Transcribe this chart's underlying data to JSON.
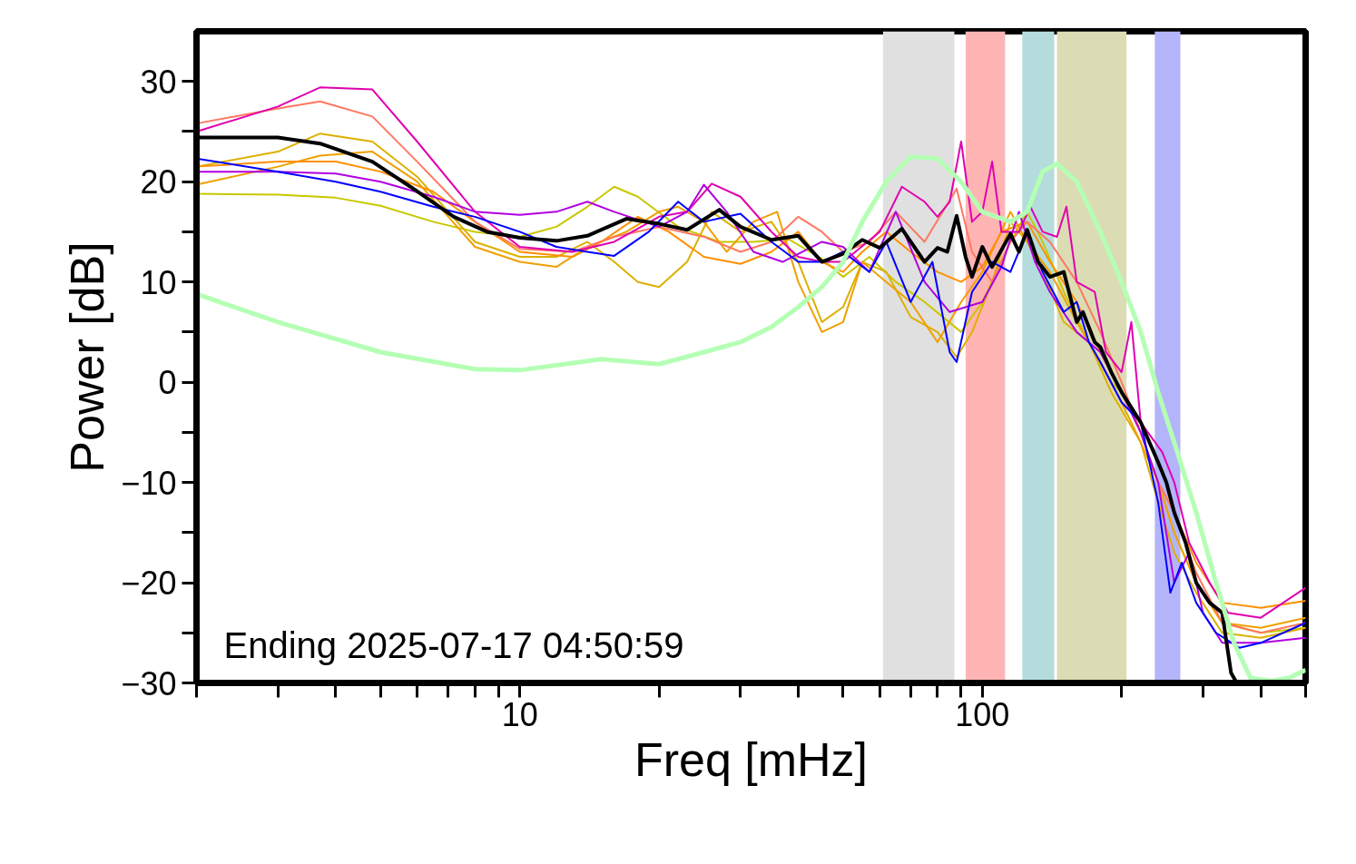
{
  "chart_data": {
    "type": "line",
    "xlabel": "Freq [mHz]",
    "ylabel": "Power [dB]",
    "log": "x",
    "grid": false,
    "xlim": [
      2,
      500
    ],
    "ylim": [
      -30,
      35
    ],
    "xticks": [
      {
        "value": 2,
        "label": null
      },
      {
        "value": 3,
        "label": null
      },
      {
        "value": 4,
        "label": null
      },
      {
        "value": 5,
        "label": null
      },
      {
        "value": 6,
        "label": null
      },
      {
        "value": 7,
        "label": null
      },
      {
        "value": 8,
        "label": null
      },
      {
        "value": 9,
        "label": null
      },
      10,
      {
        "value": 20,
        "label": null
      },
      {
        "value": 30,
        "label": null
      },
      {
        "value": 40,
        "label": null
      },
      {
        "value": 50,
        "label": null
      },
      {
        "value": 60,
        "label": null
      },
      {
        "value": 70,
        "label": null
      },
      {
        "value": 80,
        "label": null
      },
      {
        "value": 90,
        "label": null
      },
      100,
      {
        "value": 200,
        "label": null
      },
      {
        "value": 300,
        "label": null
      },
      {
        "value": 400,
        "label": null
      },
      {
        "value": 500,
        "label": null
      }
    ],
    "yticks": [
      {
        "value": -30,
        "label": "−30"
      },
      {
        "value": -25,
        "label": null
      },
      {
        "value": -20,
        "label": "−20"
      },
      {
        "value": -15,
        "label": null
      },
      {
        "value": -10,
        "label": "−10"
      },
      {
        "value": -5,
        "label": null
      },
      0,
      {
        "value": 5,
        "label": null
      },
      10,
      {
        "value": 15,
        "label": null
      },
      20,
      {
        "value": 25,
        "label": null
      },
      30
    ],
    "annotations": [
      "Ending 2025-07-17 04:50:59"
    ],
    "bands": [
      {
        "axis": "x",
        "from": 61,
        "to": 87,
        "color": "#e0e0e0"
      },
      {
        "axis": "x",
        "from": 92,
        "to": 112,
        "color": "#ffb4b4"
      },
      {
        "axis": "x",
        "from": 122,
        "to": 143,
        "color": "#b4dcdc"
      },
      {
        "axis": "x",
        "from": 145,
        "to": 205,
        "color": "#dcdcb4"
      },
      {
        "axis": "x",
        "from": 236,
        "to": 268,
        "color": "#b4b4fa"
      }
    ],
    "series": [
      {
        "color": "#c8c800",
        "x": [
          2,
          3,
          4,
          5,
          6.5,
          8,
          10,
          12,
          14,
          16,
          18,
          22,
          27,
          32,
          38,
          45,
          50,
          57,
          65,
          75,
          90,
          100,
          115,
          125,
          135,
          150,
          170,
          190,
          200,
          220,
          240,
          260,
          290,
          330,
          400,
          500
        ],
        "values": [
          18.8,
          18.7,
          18.4,
          17.6,
          16,
          15,
          14.5,
          15.5,
          17.5,
          19.5,
          18.5,
          15.5,
          14,
          14,
          14.3,
          12.3,
          10.5,
          12.5,
          10,
          8,
          5,
          8,
          14,
          17,
          14,
          9,
          4,
          0,
          -1,
          -5,
          -10,
          -15,
          -20,
          -24,
          -25,
          -24.5
        ]
      },
      {
        "color": "#dcb000",
        "x": [
          2,
          3,
          3.7,
          4.8,
          6,
          8,
          10,
          12,
          14,
          16,
          18,
          20,
          23,
          26,
          30,
          35,
          40,
          45,
          50,
          55,
          62,
          70,
          80,
          88,
          95,
          105,
          115,
          125,
          135,
          150,
          170,
          190,
          220,
          240,
          260,
          290,
          330,
          400,
          500
        ],
        "values": [
          21.5,
          23,
          24.8,
          24,
          20.5,
          14,
          12.5,
          12.5,
          14,
          12,
          10,
          9.5,
          12,
          17,
          15,
          16,
          12,
          6,
          7.5,
          12,
          11,
          6.5,
          5,
          2.5,
          5,
          10,
          16,
          14,
          11,
          6,
          4,
          -1,
          -6,
          -12,
          -17,
          -21,
          -25,
          -25.5,
          -24.5
        ]
      },
      {
        "color": "#f0a000",
        "x": [
          2,
          3,
          3.7,
          4.8,
          6,
          8,
          10,
          12,
          14,
          17,
          20,
          22,
          25,
          28,
          32,
          36,
          40,
          45,
          50,
          55,
          62,
          70,
          80,
          90,
          100,
          115,
          125,
          140,
          160,
          180,
          200,
          220,
          240,
          260,
          290,
          330,
          400,
          500
        ],
        "values": [
          19.7,
          21.5,
          22.6,
          23,
          20,
          13.5,
          12,
          11.5,
          13.5,
          15,
          17,
          17.5,
          16,
          13,
          16,
          17,
          10,
          5,
          6,
          12,
          10,
          8,
          4,
          8,
          11,
          17,
          14,
          11,
          6,
          2,
          -2,
          -6,
          -10,
          -15,
          -20,
          -24,
          -24.5,
          -23.5
        ]
      },
      {
        "color": "#ff9000",
        "x": [
          2,
          3,
          4,
          5,
          6.5,
          8,
          10,
          13,
          15,
          18,
          21,
          25,
          30,
          35,
          40,
          45,
          50,
          55,
          62,
          70,
          80,
          90,
          100,
          110,
          125,
          140,
          160,
          180,
          200,
          220,
          240,
          260,
          290,
          330,
          400,
          500
        ],
        "values": [
          21.5,
          22,
          22,
          21,
          19,
          16,
          13,
          12.5,
          14,
          16.5,
          15,
          12.5,
          11.8,
          13,
          15,
          12,
          11,
          13,
          15,
          13,
          11,
          10,
          11.5,
          15,
          16,
          12,
          8,
          3,
          -1,
          -5,
          -10,
          -13,
          -18,
          -22,
          -22.5,
          -21.8
        ]
      },
      {
        "color": "#ff7860",
        "x": [
          2,
          3,
          3.7,
          4.8,
          6,
          8,
          10,
          13,
          16,
          20,
          25,
          30,
          35,
          40,
          45,
          50,
          57,
          65,
          75,
          88,
          95,
          105,
          115,
          125,
          140,
          160,
          180,
          200,
          220,
          240,
          260,
          290,
          330,
          400,
          500
        ],
        "values": [
          25.8,
          27.3,
          28,
          26.5,
          22,
          16,
          13.3,
          13,
          14.5,
          15.5,
          14.5,
          13,
          14,
          16.5,
          15,
          13,
          14,
          17,
          14,
          19.3,
          13,
          10,
          14,
          16,
          14,
          10,
          5,
          0,
          -5,
          -10,
          -13,
          -19,
          -24,
          -25,
          -24
        ]
      },
      {
        "color": "#e000b0",
        "x": [
          2,
          3,
          3.7,
          4.8,
          6,
          8,
          10,
          13,
          16,
          20,
          23,
          26,
          30,
          35,
          40,
          45,
          50,
          60,
          67,
          75,
          80,
          85,
          90,
          95,
          100,
          105,
          110,
          120,
          127,
          135,
          145,
          152,
          160,
          175,
          185,
          200,
          210,
          220,
          245,
          260,
          280,
          310,
          340,
          400,
          500
        ],
        "values": [
          25,
          27.5,
          29.4,
          29.2,
          24,
          17,
          13.5,
          13,
          14,
          16.5,
          17,
          19.8,
          18.5,
          15,
          12.5,
          12,
          12,
          15,
          19.5,
          18,
          16.5,
          18,
          24,
          16,
          17,
          22,
          15,
          15,
          17.5,
          15,
          14.5,
          17.5,
          10,
          9,
          3,
          1,
          6,
          -4,
          -7,
          -10,
          -16,
          -20,
          -23,
          -23.5,
          -20.5
        ]
      },
      {
        "color": "#b000e0",
        "x": [
          2,
          3,
          4,
          5,
          6.5,
          8,
          10,
          12,
          14,
          16,
          20,
          23,
          25,
          28,
          32,
          37,
          45,
          50,
          57,
          65,
          75,
          85,
          100,
          110,
          120,
          130,
          140,
          160,
          180,
          200,
          220,
          240,
          260,
          280,
          300,
          330,
          400,
          500
        ],
        "values": [
          21,
          21,
          20.8,
          20,
          18.5,
          17,
          16.7,
          17,
          18,
          17,
          15.5,
          17,
          19.7,
          17,
          13,
          12,
          14,
          13.5,
          11,
          17,
          10,
          7,
          8,
          11.5,
          17,
          12,
          9,
          5,
          3,
          -1,
          -5,
          -10,
          -20,
          -17,
          -23,
          -26,
          -26,
          -25.5
        ]
      },
      {
        "color": "#0000ff",
        "x": [
          2,
          3,
          4,
          5,
          6.5,
          8,
          10,
          12,
          14,
          16,
          19,
          22,
          25,
          30,
          35,
          40,
          45,
          50,
          57,
          62,
          70,
          78,
          85,
          88,
          95,
          105,
          115,
          125,
          135,
          150,
          160,
          170,
          180,
          200,
          220,
          240,
          255,
          270,
          290,
          320,
          360,
          400,
          500
        ],
        "values": [
          22.3,
          21,
          20,
          19,
          17.5,
          16.5,
          15,
          13.5,
          13,
          12.6,
          15,
          18,
          16,
          16.8,
          14,
          12,
          12,
          13,
          11,
          14,
          8,
          12,
          3,
          2,
          9,
          12,
          11,
          15,
          11,
          7,
          8,
          4,
          2,
          -2,
          -4,
          -12,
          -21,
          -18,
          -22,
          -25,
          -26.5,
          -26,
          -24
        ]
      },
      {
        "color": "#000000",
        "x": [
          2,
          3,
          3.7,
          4.8,
          5.8,
          7.2,
          8.5,
          10,
          12,
          14,
          17,
          20,
          23,
          27,
          30,
          35,
          40,
          45,
          50,
          55,
          60,
          67,
          75,
          80,
          84,
          88,
          92,
          95,
          100,
          105,
          115,
          120,
          125,
          132,
          140,
          150,
          160,
          165,
          175,
          180,
          190,
          200,
          220,
          240,
          250,
          260,
          275,
          290,
          310,
          330,
          345,
          355
        ],
        "values": [
          24.4,
          24.4,
          23.8,
          22,
          19.5,
          16.5,
          15,
          14.4,
          14.1,
          14.6,
          16.3,
          15.8,
          15.2,
          17.2,
          15.5,
          14.2,
          14.6,
          12,
          12.8,
          14.2,
          13.4,
          15.3,
          12,
          13.4,
          13,
          16.6,
          12.5,
          10.5,
          13.5,
          11.5,
          14.8,
          13,
          15.2,
          12,
          10.5,
          11,
          6,
          7,
          4,
          3.5,
          1,
          -1,
          -4,
          -8,
          -10,
          -13,
          -16,
          -20,
          -22,
          -23,
          -29,
          -30
        ]
      },
      {
        "color": "#b4ffb4",
        "x": [
          2,
          3,
          5,
          8,
          10,
          15,
          20,
          25,
          30,
          35,
          40,
          45,
          50,
          55,
          62,
          70,
          80,
          90,
          100,
          115,
          125,
          135,
          145,
          160,
          180,
          200,
          220,
          240,
          260,
          290,
          320,
          350,
          380,
          420,
          460,
          500
        ],
        "values": [
          8.8,
          6,
          3,
          1.3,
          1.2,
          2.3,
          1.8,
          3,
          4,
          5.5,
          7.5,
          9.5,
          12,
          16,
          20,
          22.5,
          22.3,
          20,
          17,
          16,
          17,
          21,
          21.8,
          20,
          15,
          10,
          5,
          -1,
          -6,
          -13,
          -20,
          -26,
          -29.5,
          -29.8,
          -29.5,
          -28.7
        ]
      }
    ]
  }
}
